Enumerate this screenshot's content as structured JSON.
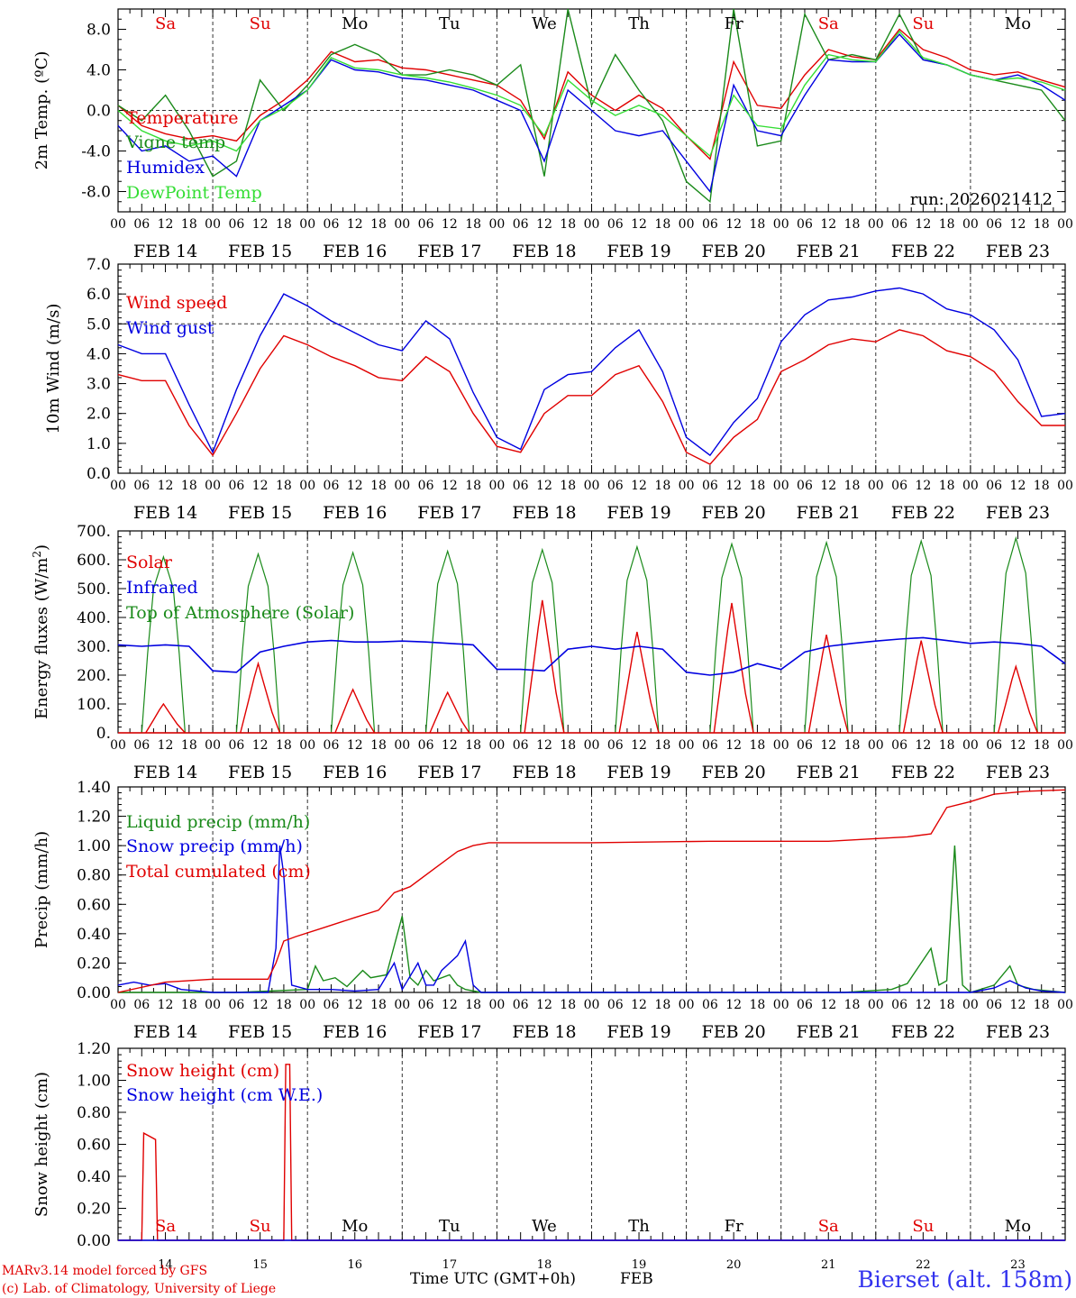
{
  "meteogram": {
    "days": [
      "FEB 14",
      "FEB 15",
      "FEB 16",
      "FEB 17",
      "FEB 18",
      "FEB 19",
      "FEB 20",
      "FEB 21",
      "FEB 22",
      "FEB 23"
    ],
    "weekdays": [
      "Sa",
      "Su",
      "Mo",
      "Tu",
      "We",
      "Th",
      "Fr",
      "Sa",
      "Su",
      "Mo"
    ],
    "weekday_colors": [
      "#e00000",
      "#e00000",
      "#000000",
      "#000000",
      "#000000",
      "#000000",
      "#000000",
      "#e00000",
      "#e00000",
      "#000000"
    ],
    "hour_ticks": [
      "00",
      "06",
      "12",
      "18"
    ],
    "final_hour": "00",
    "day_numbers": [
      "14",
      "15",
      "16",
      "17",
      "18",
      "19",
      "20",
      "21",
      "22",
      "23"
    ],
    "x_axis_title": "Time UTC (GMT+0h)",
    "x_axis_month": "FEB",
    "run_label": "run: 2026021412",
    "credit_line1": "MARv3.14 model forced by GFS",
    "credit_line2": "(c) Lab. of Climatology, University of Liege",
    "station": "Bierset (alt. 158m)"
  },
  "chart_data": [
    {
      "type": "line",
      "title": "Temperature",
      "ylabel": "2m Temp. (ºC)",
      "ylim": [
        -10,
        10
      ],
      "yticks": [
        "-8.0",
        "-4.0",
        "0.0",
        "4.0",
        "8.0"
      ],
      "reference_line": 0,
      "x_hours": [
        0,
        6,
        12,
        18,
        24,
        30,
        36,
        42,
        48,
        54,
        60,
        66,
        72,
        78,
        84,
        90,
        96,
        102,
        108,
        114,
        120,
        126,
        132,
        138,
        144,
        150,
        156,
        162,
        168,
        174,
        180,
        186,
        192,
        198,
        204,
        210,
        216,
        222,
        228,
        234,
        240
      ],
      "series": [
        {
          "name": "Temperature",
          "color": "#e00000",
          "values": [
            0.5,
            -1.5,
            -2.3,
            -2.8,
            -2.5,
            -3.0,
            -0.5,
            1.0,
            3.0,
            5.8,
            4.8,
            5.0,
            4.2,
            4.0,
            3.5,
            3.0,
            2.5,
            1.0,
            -2.8,
            3.8,
            1.5,
            0,
            1.5,
            0.2,
            -2.5,
            -4.8,
            4.8,
            0.5,
            0.2,
            3.5,
            6.0,
            5.3,
            5.0,
            8.0,
            6.0,
            5.2,
            4.0,
            3.5,
            3.8,
            3.0,
            2.3
          ]
        },
        {
          "name": "Vigne temp",
          "color": "#1a8a1a",
          "values": [
            0.5,
            -1.0,
            1.5,
            -2.0,
            -6.5,
            -5.0,
            3.0,
            0,
            2.5,
            5.5,
            6.5,
            5.5,
            3.5,
            3.5,
            4.0,
            3.5,
            2.5,
            4.5,
            -6.5,
            10,
            0.5,
            5.5,
            2.0,
            -1.0,
            -7.0,
            -9.0,
            10,
            -3.5,
            -3.0,
            9.5,
            5.0,
            5.5,
            5.0,
            9.5,
            5.0,
            4.5,
            3.5,
            3.0,
            2.5,
            2.0,
            -1.0
          ]
        },
        {
          "name": "Humidex",
          "color": "#0000e0",
          "values": [
            -1.5,
            -4.0,
            -3.5,
            -5.0,
            -4.5,
            -6.5,
            -1.0,
            0.5,
            2.0,
            5.0,
            4.0,
            3.8,
            3.2,
            3.0,
            2.5,
            2.0,
            1.0,
            0,
            -5.0,
            2.0,
            0,
            -2.0,
            -2.5,
            -2.0,
            -5.0,
            -8.0,
            2.5,
            -2.0,
            -2.5,
            1.5,
            5.0,
            4.8,
            4.8,
            7.5,
            5.0,
            4.5,
            3.5,
            3.0,
            3.5,
            2.5,
            1.0
          ]
        },
        {
          "name": "DewPoint Temp",
          "color": "#33dd33",
          "values": [
            0,
            -2.0,
            -3.0,
            -3.5,
            -3.0,
            -4.0,
            -1.0,
            0.2,
            2.0,
            5.2,
            4.2,
            4.0,
            3.5,
            3.2,
            2.8,
            2.2,
            1.5,
            0.5,
            -2.5,
            3.0,
            1.0,
            -0.5,
            0.5,
            -0.5,
            -2.5,
            -4.5,
            1.5,
            -1.5,
            -1.8,
            2.5,
            5.5,
            5.0,
            4.8,
            7.8,
            5.2,
            4.5,
            3.5,
            3.0,
            3.2,
            2.8,
            2.0
          ]
        }
      ]
    },
    {
      "type": "line",
      "title": "Wind",
      "ylabel": "10m Wind (m/s)",
      "ylim": [
        0,
        7
      ],
      "yticks": [
        "0.0",
        "1.0",
        "2.0",
        "3.0",
        "4.0",
        "5.0",
        "6.0",
        "7.0"
      ],
      "reference_line": 5,
      "x_hours": [
        0,
        6,
        12,
        18,
        24,
        30,
        36,
        42,
        48,
        54,
        60,
        66,
        72,
        78,
        84,
        90,
        96,
        102,
        108,
        114,
        120,
        126,
        132,
        138,
        144,
        150,
        156,
        162,
        168,
        174,
        180,
        186,
        192,
        198,
        204,
        210,
        216,
        222,
        228,
        234,
        240
      ],
      "series": [
        {
          "name": "Wind speed",
          "color": "#e00000",
          "values": [
            3.3,
            3.1,
            3.1,
            1.6,
            0.6,
            2.0,
            3.5,
            4.6,
            4.3,
            3.9,
            3.6,
            3.2,
            3.1,
            3.9,
            3.4,
            2.0,
            0.9,
            0.7,
            2.0,
            2.6,
            2.6,
            3.3,
            3.6,
            2.4,
            0.7,
            0.3,
            1.2,
            1.8,
            3.4,
            3.8,
            4.3,
            4.5,
            4.4,
            4.8,
            4.6,
            4.1,
            3.9,
            3.4,
            2.4,
            1.6,
            1.6
          ]
        },
        {
          "name": "Wind gust",
          "color": "#0000e0",
          "values": [
            4.3,
            4.0,
            4.0,
            2.3,
            0.7,
            2.8,
            4.6,
            6.0,
            5.6,
            5.1,
            4.7,
            4.3,
            4.1,
            5.1,
            4.5,
            2.7,
            1.2,
            0.8,
            2.8,
            3.3,
            3.4,
            4.2,
            4.8,
            3.4,
            1.2,
            0.6,
            1.7,
            2.5,
            4.4,
            5.3,
            5.8,
            5.9,
            6.1,
            6.2,
            6.0,
            5.5,
            5.3,
            4.8,
            3.8,
            1.9,
            2.0
          ]
        }
      ]
    },
    {
      "type": "line",
      "title": "Energy fluxes",
      "ylabel": "Energy fluxes (W/m2)",
      "ylim": [
        0,
        700
      ],
      "yticks": [
        "0.",
        "100.",
        "200.",
        "300.",
        "400.",
        "500.",
        "600.",
        "700."
      ],
      "day_peaks": {
        "Top of Atmosphere (Solar)": [
          610,
          620,
          625,
          630,
          635,
          645,
          655,
          660,
          665,
          675
        ],
        "Solar": [
          100,
          240,
          150,
          140,
          460,
          350,
          450,
          340,
          320,
          230
        ]
      },
      "infrared_hours": [
        0,
        6,
        12,
        18,
        24,
        30,
        36,
        42,
        48,
        54,
        60,
        66,
        72,
        78,
        84,
        90,
        96,
        102,
        108,
        114,
        120,
        126,
        132,
        138,
        144,
        150,
        156,
        162,
        168,
        174,
        180,
        186,
        192,
        198,
        204,
        210,
        216,
        222,
        228,
        234,
        240
      ],
      "infrared_values": [
        305,
        300,
        305,
        300,
        215,
        210,
        280,
        300,
        315,
        320,
        315,
        315,
        318,
        315,
        310,
        305,
        220,
        220,
        215,
        290,
        300,
        290,
        300,
        290,
        210,
        200,
        210,
        240,
        220,
        280,
        300,
        310,
        318,
        325,
        330,
        320,
        310,
        315,
        310,
        300,
        240
      ],
      "series": [
        {
          "name": "Solar",
          "color": "#e00000"
        },
        {
          "name": "Infrared",
          "color": "#0000e0"
        },
        {
          "name": "Top of Atmosphere (Solar)",
          "color": "#1a8a1a"
        }
      ]
    },
    {
      "type": "line",
      "title": "Precipitation",
      "ylabel": "Precip (mm/h)",
      "ylim": [
        0,
        1.4
      ],
      "yticks": [
        "0.00",
        "0.20",
        "0.40",
        "0.60",
        "0.80",
        "1.00",
        "1.20",
        "1.40"
      ],
      "series": [
        {
          "name": "Liquid precip (mm/h)",
          "color": "#1a8a1a",
          "points": [
            [
              0,
              0
            ],
            [
              30,
              0
            ],
            [
              48,
              0.02
            ],
            [
              50,
              0.18
            ],
            [
              52,
              0.08
            ],
            [
              55,
              0.1
            ],
            [
              58,
              0.04
            ],
            [
              62,
              0.15
            ],
            [
              64,
              0.1
            ],
            [
              68,
              0.12
            ],
            [
              72,
              0.52
            ],
            [
              74,
              0.1
            ],
            [
              76,
              0.05
            ],
            [
              78,
              0.15
            ],
            [
              80,
              0.08
            ],
            [
              84,
              0.12
            ],
            [
              86,
              0.05
            ],
            [
              88,
              0.02
            ],
            [
              92,
              0
            ],
            [
              184,
              0
            ],
            [
              196,
              0.02
            ],
            [
              200,
              0.06
            ],
            [
              206,
              0.3
            ],
            [
              208,
              0.05
            ],
            [
              210,
              0.08
            ],
            [
              212,
              1.0
            ],
            [
              214,
              0.05
            ],
            [
              216,
              0
            ],
            [
              222,
              0.05
            ],
            [
              226,
              0.18
            ],
            [
              228,
              0.05
            ],
            [
              232,
              0.02
            ],
            [
              240,
              0
            ]
          ]
        },
        {
          "name": "Snow precip (mm/h)",
          "color": "#0000e0",
          "points": [
            [
              0,
              0.05
            ],
            [
              4,
              0.07
            ],
            [
              8,
              0.05
            ],
            [
              12,
              0.06
            ],
            [
              16,
              0.02
            ],
            [
              24,
              0
            ],
            [
              38,
              0
            ],
            [
              40,
              0.3
            ],
            [
              41,
              1.0
            ],
            [
              42,
              0.8
            ],
            [
              43,
              0.4
            ],
            [
              44,
              0.05
            ],
            [
              48,
              0.02
            ],
            [
              54,
              0.02
            ],
            [
              60,
              0.01
            ],
            [
              66,
              0.02
            ],
            [
              70,
              0.2
            ],
            [
              72,
              0.02
            ],
            [
              76,
              0.2
            ],
            [
              78,
              0.05
            ],
            [
              80,
              0.05
            ],
            [
              82,
              0.15
            ],
            [
              84,
              0.2
            ],
            [
              86,
              0.25
            ],
            [
              88,
              0.35
            ],
            [
              90,
              0.05
            ],
            [
              92,
              0
            ],
            [
              216,
              0
            ],
            [
              222,
              0.03
            ],
            [
              226,
              0.08
            ],
            [
              230,
              0.03
            ],
            [
              234,
              0.01
            ],
            [
              240,
              0
            ]
          ]
        },
        {
          "name": "Total cumulated (cm)",
          "color": "#e00000",
          "points": [
            [
              0,
              0
            ],
            [
              12,
              0.07
            ],
            [
              24,
              0.09
            ],
            [
              38,
              0.09
            ],
            [
              40,
              0.2
            ],
            [
              42,
              0.35
            ],
            [
              45,
              0.38
            ],
            [
              52,
              0.44
            ],
            [
              60,
              0.51
            ],
            [
              66,
              0.56
            ],
            [
              70,
              0.68
            ],
            [
              74,
              0.72
            ],
            [
              80,
              0.84
            ],
            [
              86,
              0.96
            ],
            [
              90,
              1.0
            ],
            [
              94,
              1.02
            ],
            [
              120,
              1.02
            ],
            [
              150,
              1.03
            ],
            [
              180,
              1.03
            ],
            [
              200,
              1.06
            ],
            [
              206,
              1.08
            ],
            [
              210,
              1.26
            ],
            [
              216,
              1.3
            ],
            [
              222,
              1.35
            ],
            [
              230,
              1.37
            ],
            [
              240,
              1.38
            ]
          ]
        }
      ]
    },
    {
      "type": "line",
      "title": "Snow height",
      "ylabel": "Snow height (cm)",
      "ylim": [
        0,
        1.2
      ],
      "yticks": [
        "0.00",
        "0.20",
        "0.40",
        "0.60",
        "0.80",
        "1.00",
        "1.20"
      ],
      "series": [
        {
          "name": "Snow height (cm)",
          "color": "#e00000",
          "points": [
            [
              0,
              0
            ],
            [
              6,
              0
            ],
            [
              6.5,
              0.67
            ],
            [
              9.5,
              0.63
            ],
            [
              10,
              0
            ],
            [
              42,
              0
            ],
            [
              42.5,
              1.1
            ],
            [
              43.5,
              1.1
            ],
            [
              44,
              0
            ],
            [
              240,
              0
            ]
          ]
        },
        {
          "name": "Snow height (cm W.E.)",
          "color": "#0000e0",
          "points": [
            [
              0,
              0
            ],
            [
              240,
              0
            ]
          ]
        }
      ]
    }
  ]
}
